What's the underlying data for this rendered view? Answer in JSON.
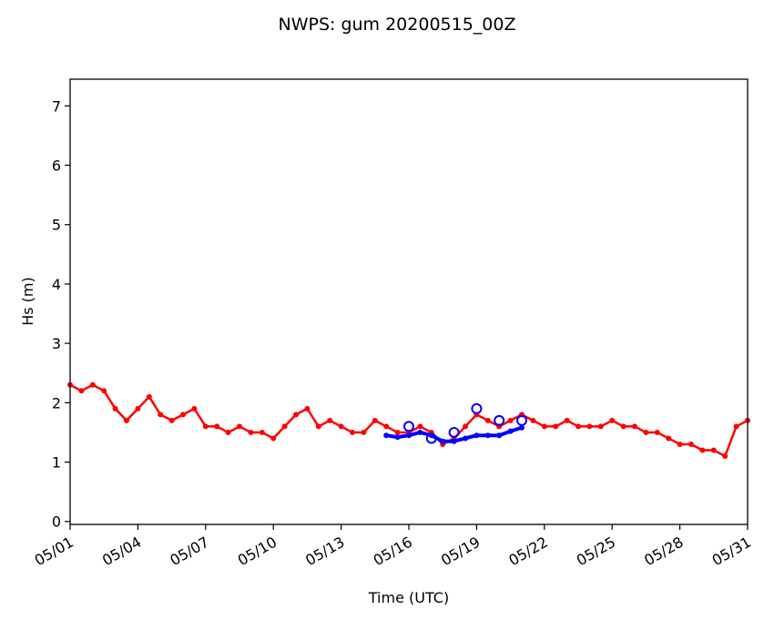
{
  "chart_data": {
    "type": "line",
    "title": "NWPS: gum 20200515_00Z",
    "xlabel": "Time (UTC)",
    "ylabel": "Hs (m)",
    "x_range": [
      "2020-05-01",
      "2020-05-31"
    ],
    "ylim": [
      -0.05,
      7.45
    ],
    "x_ticks": [
      "05/01",
      "05/04",
      "05/07",
      "05/10",
      "05/13",
      "05/16",
      "05/19",
      "05/22",
      "05/25",
      "05/28",
      "05/31"
    ],
    "y_ticks": [
      "0",
      "1",
      "2",
      "3",
      "4",
      "5",
      "6",
      "7"
    ],
    "grid": false,
    "series": [
      {
        "role": "observed",
        "color": "#ff0000",
        "marker": "dot",
        "x": [
          "2020-05-01 00:00",
          "2020-05-01 12:00",
          "2020-05-02 00:00",
          "2020-05-02 12:00",
          "2020-05-03 00:00",
          "2020-05-03 12:00",
          "2020-05-04 00:00",
          "2020-05-04 12:00",
          "2020-05-05 00:00",
          "2020-05-05 12:00",
          "2020-05-06 00:00",
          "2020-05-06 12:00",
          "2020-05-07 00:00",
          "2020-05-07 12:00",
          "2020-05-08 00:00",
          "2020-05-08 12:00",
          "2020-05-09 00:00",
          "2020-05-09 12:00",
          "2020-05-10 00:00",
          "2020-05-10 12:00",
          "2020-05-11 00:00",
          "2020-05-11 12:00",
          "2020-05-12 00:00",
          "2020-05-12 12:00",
          "2020-05-13 00:00",
          "2020-05-13 12:00",
          "2020-05-14 00:00",
          "2020-05-14 12:00",
          "2020-05-15 00:00",
          "2020-05-15 12:00",
          "2020-05-16 00:00",
          "2020-05-16 12:00",
          "2020-05-17 00:00",
          "2020-05-17 12:00",
          "2020-05-18 00:00",
          "2020-05-18 12:00",
          "2020-05-19 00:00",
          "2020-05-19 12:00",
          "2020-05-20 00:00",
          "2020-05-20 12:00",
          "2020-05-21 00:00",
          "2020-05-21 12:00",
          "2020-05-22 00:00",
          "2020-05-22 12:00",
          "2020-05-23 00:00",
          "2020-05-23 12:00",
          "2020-05-24 00:00",
          "2020-05-24 12:00",
          "2020-05-25 00:00",
          "2020-05-25 12:00",
          "2020-05-26 00:00",
          "2020-05-26 12:00",
          "2020-05-27 00:00",
          "2020-05-27 12:00",
          "2020-05-28 00:00",
          "2020-05-28 12:00",
          "2020-05-29 00:00",
          "2020-05-29 12:00",
          "2020-05-30 00:00",
          "2020-05-30 12:00",
          "2020-05-31 00:00"
        ],
        "y": [
          2.3,
          2.2,
          2.3,
          2.2,
          1.9,
          1.7,
          1.9,
          2.1,
          1.8,
          1.7,
          1.8,
          1.9,
          1.6,
          1.6,
          1.5,
          1.6,
          1.5,
          1.5,
          1.4,
          1.6,
          1.8,
          1.9,
          1.6,
          1.7,
          1.6,
          1.5,
          1.5,
          1.7,
          1.6,
          1.5,
          1.5,
          1.6,
          1.5,
          1.3,
          1.4,
          1.6,
          1.8,
          1.7,
          1.6,
          1.7,
          1.8,
          1.7,
          1.6,
          1.6,
          1.7,
          1.6,
          1.6,
          1.6,
          1.7,
          1.6,
          1.6,
          1.5,
          1.5,
          1.4,
          1.3,
          1.3,
          1.2,
          1.2,
          1.1,
          1.6,
          1.7
        ]
      },
      {
        "role": "forecast",
        "color": "#0000ff",
        "marker": "dot",
        "x": [
          "2020-05-15 00:00",
          "2020-05-15 12:00",
          "2020-05-16 00:00",
          "2020-05-16 12:00",
          "2020-05-17 00:00",
          "2020-05-17 12:00",
          "2020-05-18 00:00",
          "2020-05-18 12:00",
          "2020-05-19 00:00",
          "2020-05-19 12:00",
          "2020-05-20 00:00",
          "2020-05-20 12:00",
          "2020-05-21 00:00"
        ],
        "y": [
          1.45,
          1.42,
          1.45,
          1.5,
          1.45,
          1.35,
          1.35,
          1.4,
          1.45,
          1.45,
          1.45,
          1.52,
          1.58
        ]
      },
      {
        "role": "daily-markers",
        "color": "#0000ff",
        "marker": "open-circle",
        "x": [
          "2020-05-16 00:00",
          "2020-05-17 00:00",
          "2020-05-18 00:00",
          "2020-05-19 00:00",
          "2020-05-20 00:00",
          "2020-05-21 00:00"
        ],
        "y": [
          1.6,
          1.4,
          1.5,
          1.9,
          1.7,
          1.7
        ]
      }
    ]
  }
}
